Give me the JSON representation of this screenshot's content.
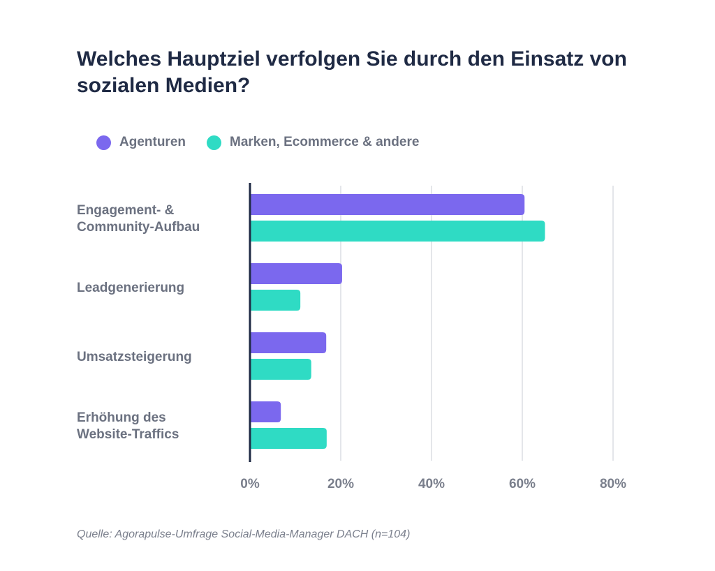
{
  "chart_data": {
    "type": "bar",
    "orientation": "horizontal",
    "title": "Welches Hauptziel verfolgen Sie durch den Einsatz von sozialen Medien?",
    "categories": [
      [
        "Engagement- &",
        "Community-Aufbau"
      ],
      [
        "Leadgenerierung"
      ],
      [
        "Umsatzsteigerung"
      ],
      [
        "Erhöhung des",
        "Website-Traffics"
      ]
    ],
    "series": [
      {
        "name": "Agenturen",
        "color": "#7b68ee",
        "values": [
          60.5,
          20.3,
          16.8,
          6.8
        ]
      },
      {
        "name": "Marken, Ecommerce & andere",
        "color": "#2fdbc4",
        "values": [
          65,
          11.1,
          13.5,
          16.9
        ]
      }
    ],
    "x_ticks": [
      "0%",
      "20%",
      "40%",
      "60%",
      "80%"
    ],
    "xlim": [
      0,
      80
    ],
    "grid": true,
    "legend": "top-left",
    "source": "Quelle: Agorapulse-Umfrage Social-Media-Manager DACH (n=104)"
  }
}
